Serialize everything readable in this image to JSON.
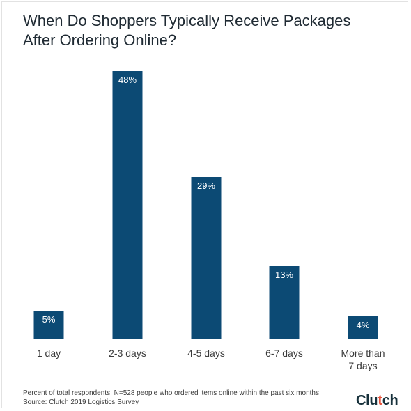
{
  "chart_data": {
    "type": "bar",
    "title": "When Do Shoppers Typically Receive Packages After Ordering Online?",
    "categories": [
      "1 day",
      "2-3 days",
      "4-5 days",
      "6-7 days",
      "More than 7 days"
    ],
    "category_lines": [
      [
        "1 day"
      ],
      [
        "2-3 days"
      ],
      [
        "4-5 days"
      ],
      [
        "6-7 days"
      ],
      [
        "More than",
        "7 days"
      ]
    ],
    "values": [
      5,
      48,
      29,
      13,
      4
    ],
    "data_labels": [
      "5%",
      "48%",
      "29%",
      "13%",
      "4%"
    ],
    "unit": "%",
    "ylim": [
      0,
      48
    ],
    "grid": false,
    "bar_color": "#0c4a74"
  },
  "footnote": {
    "line1": "Percent of total respondents; N=528 people who ordered items online within the past six months",
    "line2": "Source: Clutch 2019 Logistics Survey"
  },
  "logo": {
    "text_before": "Clu",
    "text_dot": "t",
    "text_after": "ch",
    "accent_color": "#e8533c"
  }
}
